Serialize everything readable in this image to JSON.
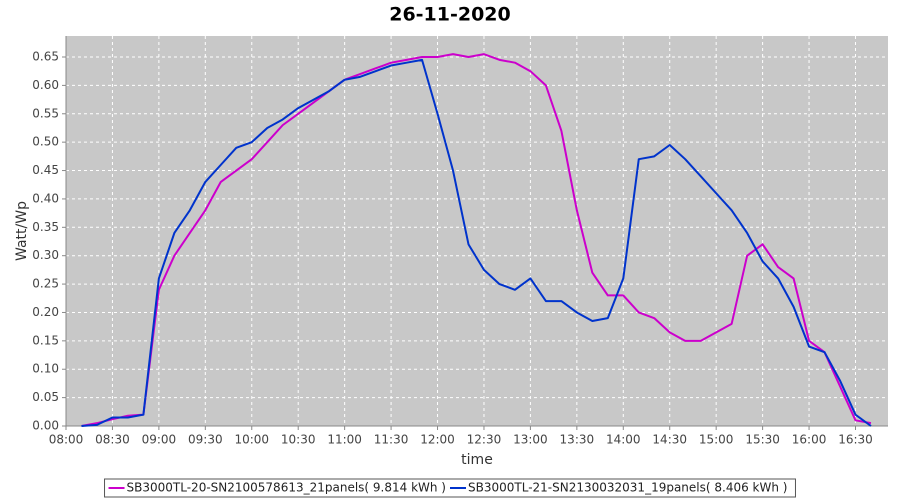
{
  "chart_data": {
    "type": "line",
    "title": "26-11-2020",
    "x_label": "time",
    "y_label": "Watt/Wp",
    "x": [
      "08:10",
      "08:20",
      "08:30",
      "08:40",
      "08:50",
      "09:00",
      "09:10",
      "09:20",
      "09:30",
      "09:40",
      "09:50",
      "10:00",
      "10:10",
      "10:20",
      "10:30",
      "10:40",
      "10:50",
      "11:00",
      "11:10",
      "11:20",
      "11:30",
      "11:40",
      "11:50",
      "12:00",
      "12:10",
      "12:20",
      "12:30",
      "12:40",
      "12:50",
      "13:00",
      "13:10",
      "13:20",
      "13:30",
      "13:40",
      "13:50",
      "14:00",
      "14:10",
      "14:20",
      "14:30",
      "14:40",
      "14:50",
      "15:00",
      "15:10",
      "15:20",
      "15:30",
      "15:40",
      "15:50",
      "16:00",
      "16:10",
      "16:20",
      "16:30",
      "16:40"
    ],
    "series": [
      {
        "name": "SB3000TL-20-SN2100578613_21panels( 9.814 kWh )",
        "color": "#cc00cc",
        "values": [
          0.0,
          0.005,
          0.012,
          0.018,
          0.02,
          0.24,
          0.3,
          0.34,
          0.38,
          0.43,
          0.45,
          0.47,
          0.5,
          0.53,
          0.55,
          0.57,
          0.59,
          0.61,
          0.62,
          0.63,
          0.64,
          0.645,
          0.65,
          0.65,
          0.655,
          0.65,
          0.655,
          0.645,
          0.64,
          0.625,
          0.6,
          0.52,
          0.38,
          0.27,
          0.23,
          0.23,
          0.2,
          0.19,
          0.165,
          0.15,
          0.15,
          0.165,
          0.18,
          0.3,
          0.32,
          0.28,
          0.26,
          0.15,
          0.13,
          0.07,
          0.01,
          0.005
        ]
      },
      {
        "name": "SB3000TL-21-SN2130032031_19panels( 8.406 kWh )",
        "color": "#0033cc",
        "values": [
          0.0,
          0.002,
          0.015,
          0.015,
          0.02,
          0.26,
          0.34,
          0.38,
          0.43,
          0.46,
          0.49,
          0.5,
          0.525,
          0.54,
          0.56,
          0.575,
          0.59,
          0.61,
          0.615,
          0.625,
          0.635,
          0.64,
          0.645,
          0.55,
          0.45,
          0.32,
          0.275,
          0.25,
          0.24,
          0.26,
          0.22,
          0.22,
          0.2,
          0.185,
          0.19,
          0.26,
          0.47,
          0.475,
          0.495,
          0.47,
          0.44,
          0.41,
          0.38,
          0.34,
          0.29,
          0.26,
          0.21,
          0.14,
          0.13,
          0.08,
          0.02,
          0.0
        ]
      }
    ],
    "xlim": [
      "08:00",
      "16:51"
    ],
    "xticks": [
      "08:00",
      "08:30",
      "09:00",
      "09:30",
      "10:00",
      "10:30",
      "11:00",
      "11:30",
      "12:00",
      "12:30",
      "13:00",
      "13:30",
      "14:00",
      "14:30",
      "15:00",
      "15:30",
      "16:00",
      "16:30"
    ],
    "ylim": [
      0,
      0.687
    ],
    "yticks": [
      {
        "value": 0,
        "label": "0.00"
      },
      0.05,
      {
        "value": 0.1,
        "label": "0.10"
      },
      0.15,
      {
        "value": 0.2,
        "label": "0.20"
      },
      0.25,
      {
        "value": 0.3,
        "label": "0.30"
      },
      0.35,
      {
        "value": 0.4,
        "label": "0.40"
      },
      0.45,
      {
        "value": 0.5,
        "label": "0.50"
      },
      0.55,
      {
        "value": 0.6,
        "label": "0.60"
      },
      0.65
    ],
    "grid": true,
    "legend": "bottom"
  }
}
